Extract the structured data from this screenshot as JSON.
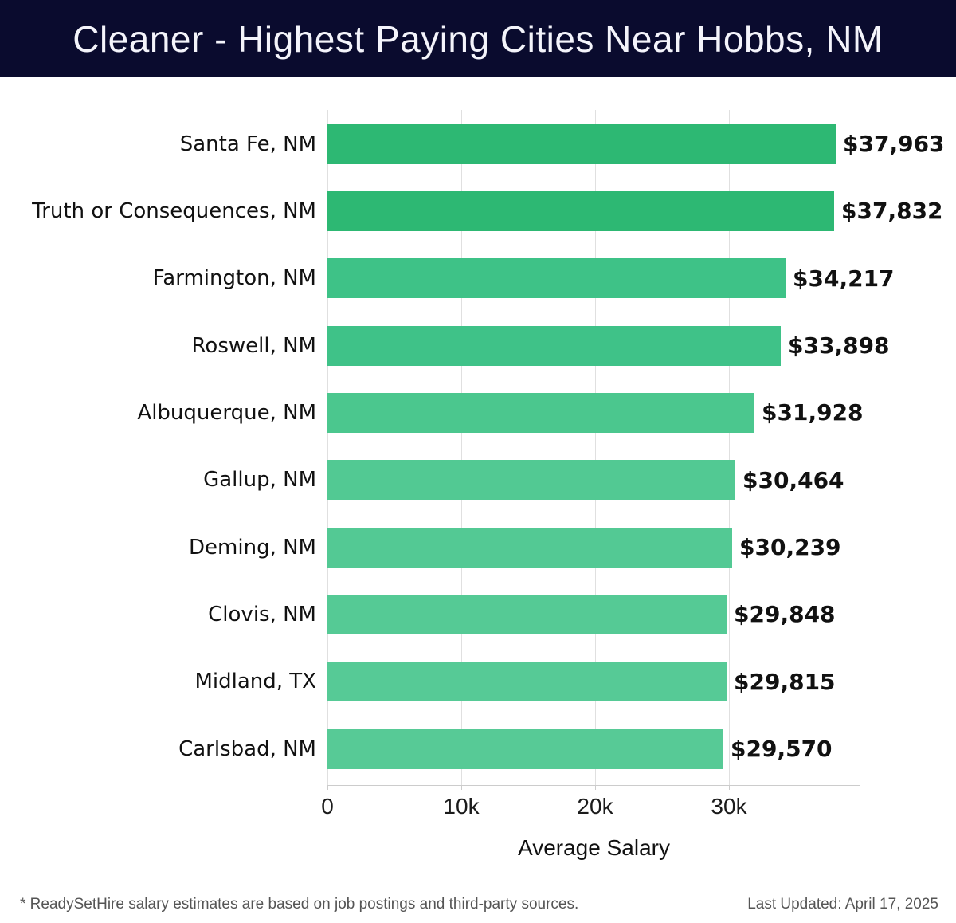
{
  "header": {
    "title": "Cleaner - Highest Paying Cities Near Hobbs, NM"
  },
  "chart_data": {
    "type": "bar",
    "orientation": "horizontal",
    "title": "Cleaner - Highest Paying Cities Near Hobbs, NM",
    "categories": [
      "Santa Fe, NM",
      "Truth or Consequences, NM",
      "Farmington, NM",
      "Roswell, NM",
      "Albuquerque, NM",
      "Gallup, NM",
      "Deming, NM",
      "Clovis, NM",
      "Midland, TX",
      "Carlsbad, NM"
    ],
    "values": [
      37963,
      37832,
      34217,
      33898,
      31928,
      30464,
      30239,
      29848,
      29815,
      29570
    ],
    "value_labels": [
      "$37,963",
      "$37,832",
      "$34,217",
      "$33,898",
      "$31,928",
      "$30,464",
      "$30,239",
      "$29,848",
      "$29,815",
      "$29,570"
    ],
    "bar_colors": [
      "#2db873",
      "#2db873",
      "#3ec287",
      "#3fc288",
      "#4bc78e",
      "#52c993",
      "#53c994",
      "#55ca95",
      "#56ca96",
      "#57ca96"
    ],
    "xlabel": "Average Salary",
    "ylabel": "",
    "x_ticks": [
      {
        "value": 0,
        "label": "0"
      },
      {
        "value": 10000,
        "label": "10k"
      },
      {
        "value": 20000,
        "label": "20k"
      },
      {
        "value": 30000,
        "label": "30k"
      }
    ],
    "xlim": [
      0,
      39800
    ],
    "grid": "vertical-only",
    "legend": "none",
    "value_labels_position": "outside-right"
  },
  "colors": {
    "header_bg": "#0a0b2e",
    "header_text": "#f4f4fb",
    "gridline": "#e0e0e0",
    "axis_line": "#cccccc"
  },
  "footer": {
    "disclaimer": "* ReadySetHire salary estimates are based on job postings and third-party sources.",
    "last_updated": "Last Updated: April 17, 2025"
  }
}
